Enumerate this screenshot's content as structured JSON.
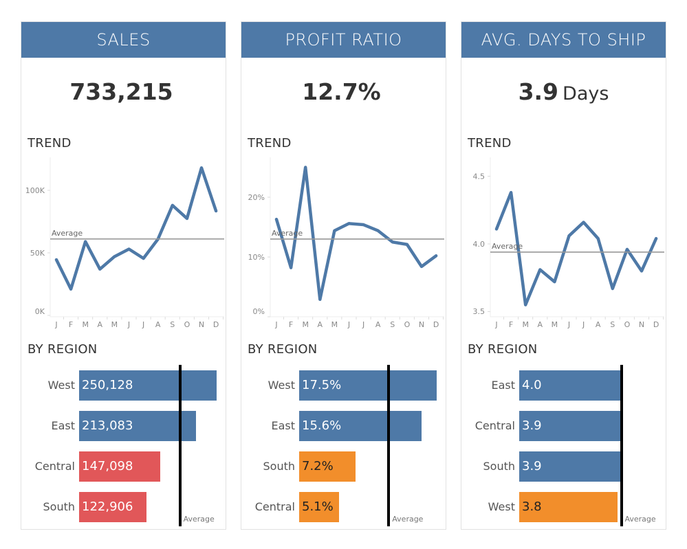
{
  "colors": {
    "header": "#4e79a7",
    "line": "#4e79a7",
    "above": "#4e79a7",
    "below_red": "#e15759",
    "below_orange": "#f28e2b",
    "avg": "#999999"
  },
  "months": [
    "J",
    "F",
    "M",
    "A",
    "M",
    "J",
    "J",
    "A",
    "S",
    "O",
    "N",
    "D"
  ],
  "panels": [
    {
      "title": "SALES",
      "kpi": "733,215",
      "kpi_unit": "",
      "trend_label": "TREND",
      "region_label": "BY REGION",
      "average_label": "Average",
      "chart_data": {
        "type": "line",
        "x": [
          "J",
          "F",
          "M",
          "A",
          "M",
          "J",
          "J",
          "A",
          "S",
          "O",
          "N",
          "D"
        ],
        "values": [
          44500,
          21000,
          59000,
          37000,
          47000,
          53000,
          45600,
          61000,
          88000,
          77500,
          118000,
          83500
        ],
        "average": 61100,
        "yticks": [
          {
            "v": 0,
            "label": "0K"
          },
          {
            "v": 50000,
            "label": "50K"
          },
          {
            "v": 100000,
            "label": "100K"
          }
        ]
      },
      "regions": {
        "type": "bar",
        "average": 183304,
        "items": [
          {
            "name": "West",
            "value": 250128,
            "label": "250,128",
            "color": "#4e79a7"
          },
          {
            "name": "East",
            "value": 213083,
            "label": "213,083",
            "color": "#4e79a7"
          },
          {
            "name": "Central",
            "value": 147098,
            "label": "147,098",
            "color": "#e15759"
          },
          {
            "name": "South",
            "value": 122906,
            "label": "122,906",
            "color": "#e15759"
          }
        ]
      }
    },
    {
      "title": "PROFIT RATIO",
      "kpi": "12.7%",
      "kpi_unit": "",
      "trend_label": "TREND",
      "region_label": "BY REGION",
      "average_label": "Average",
      "chart_data": {
        "type": "line",
        "x": [
          "J",
          "F",
          "M",
          "A",
          "M",
          "J",
          "J",
          "A",
          "S",
          "O",
          "N",
          "D"
        ],
        "values": [
          16.3,
          8.2,
          25.0,
          2.9,
          14.4,
          15.6,
          15.4,
          14.4,
          12.5,
          12.1,
          8.4,
          10.2
        ],
        "average": 13.0,
        "yticks": [
          {
            "v": 0,
            "label": "0%"
          },
          {
            "v": 10,
            "label": "10%"
          },
          {
            "v": 20,
            "label": "20%"
          }
        ]
      },
      "regions": {
        "type": "bar",
        "average": 11.4,
        "items": [
          {
            "name": "West",
            "value": 17.5,
            "label": "17.5%",
            "color": "#4e79a7"
          },
          {
            "name": "East",
            "value": 15.6,
            "label": "15.6%",
            "color": "#4e79a7"
          },
          {
            "name": "South",
            "value": 7.2,
            "label": "7.2%",
            "color": "#f28e2b"
          },
          {
            "name": "Central",
            "value": 5.1,
            "label": "5.1%",
            "color": "#f28e2b"
          }
        ]
      }
    },
    {
      "title": "AVG. DAYS TO SHIP",
      "kpi": "3.9",
      "kpi_unit": "Days",
      "trend_label": "TREND",
      "region_label": "BY REGION",
      "average_label": "Average",
      "chart_data": {
        "type": "line",
        "x": [
          "J",
          "F",
          "M",
          "A",
          "M",
          "J",
          "J",
          "A",
          "S",
          "O",
          "N",
          "D"
        ],
        "values": [
          4.11,
          4.38,
          3.55,
          3.81,
          3.72,
          4.06,
          4.16,
          4.04,
          3.67,
          3.96,
          3.8,
          4.04
        ],
        "average": 3.94,
        "yticks": [
          {
            "v": 3.5,
            "label": "3.5"
          },
          {
            "v": 4.0,
            "label": "4.0"
          },
          {
            "v": 4.5,
            "label": "4.5"
          }
        ]
      },
      "regions": {
        "type": "bar",
        "average": 3.96,
        "items": [
          {
            "name": "East",
            "value": 3.98,
            "label": "4.0",
            "color": "#4e79a7"
          },
          {
            "name": "Central",
            "value": 3.95,
            "label": "3.9",
            "color": "#4e79a7"
          },
          {
            "name": "South",
            "value": 3.94,
            "label": "3.9",
            "color": "#4e79a7"
          },
          {
            "name": "West",
            "value": 3.8,
            "label": "3.8",
            "color": "#f28e2b"
          }
        ]
      }
    }
  ]
}
